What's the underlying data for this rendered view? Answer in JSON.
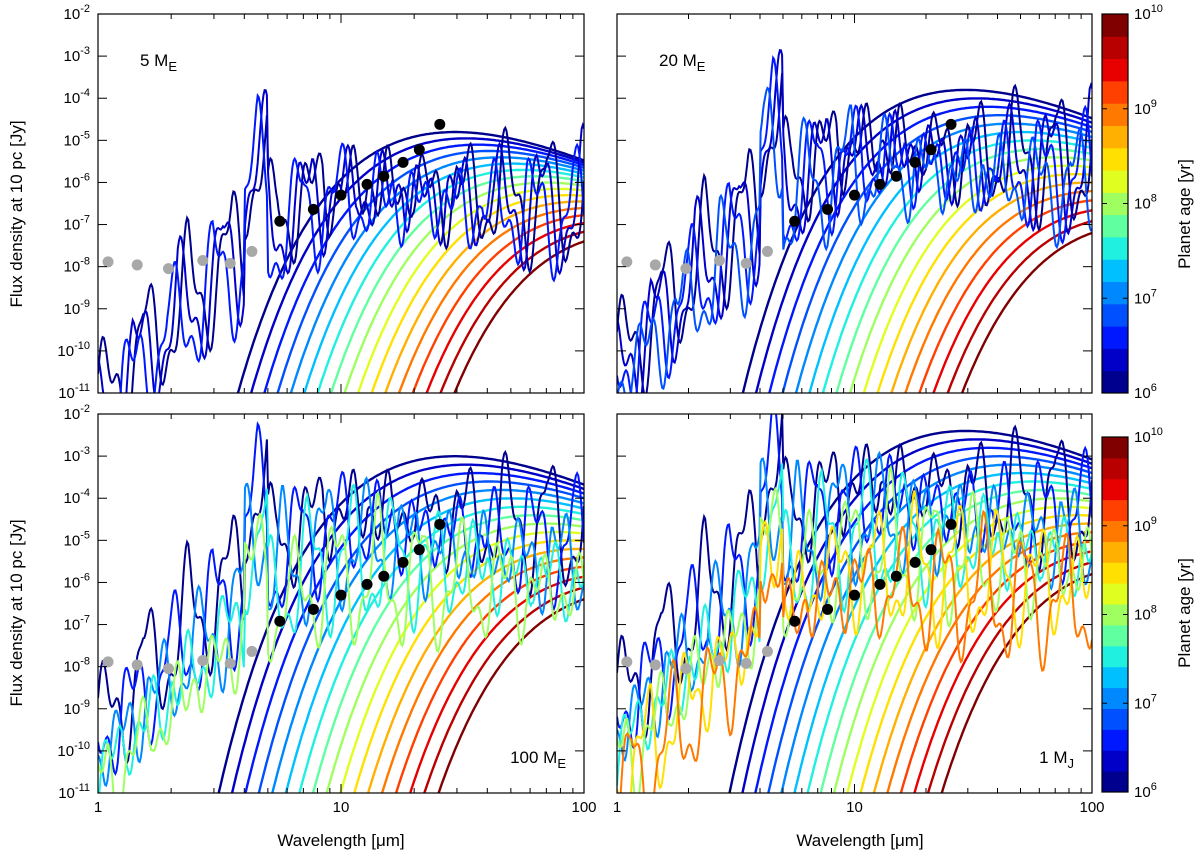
{
  "figure": {
    "y_axis_title": "Flux density at 10 pc [Jy]",
    "x_axis_title": "Wavelength [μm]",
    "colorbar_title": "Planet age [yr]"
  },
  "colorbar": {
    "ticks": [
      {
        "base": "10",
        "exp": "6"
      },
      {
        "base": "10",
        "exp": "7"
      },
      {
        "base": "10",
        "exp": "8"
      },
      {
        "base": "10",
        "exp": "9"
      },
      {
        "base": "10",
        "exp": "10"
      }
    ],
    "colors": [
      "#00008f",
      "#0000c8",
      "#0018ff",
      "#0050ff",
      "#0088ff",
      "#00c0ff",
      "#20f0e0",
      "#60ffa0",
      "#a0ff60",
      "#e0ff20",
      "#ffe000",
      "#ffb000",
      "#ff7800",
      "#ff4000",
      "#e80000",
      "#b80000",
      "#800000"
    ]
  },
  "x_ticks": [
    "1",
    "10",
    "100"
  ],
  "y_ticks": [
    {
      "base": "10",
      "exp": "-2"
    },
    {
      "base": "10",
      "exp": "-3"
    },
    {
      "base": "10",
      "exp": "-4"
    },
    {
      "base": "10",
      "exp": "-5"
    },
    {
      "base": "10",
      "exp": "-6"
    },
    {
      "base": "10",
      "exp": "-7"
    },
    {
      "base": "10",
      "exp": "-8"
    },
    {
      "base": "10",
      "exp": "-9"
    },
    {
      "base": "10",
      "exp": "-10"
    },
    {
      "base": "10",
      "exp": "-11"
    }
  ],
  "chart_data": [
    {
      "type": "line",
      "panel": "top-left",
      "title": "5 M_E",
      "label_main": "5 M",
      "label_sub": "E",
      "label_position": "top-left",
      "xlabel": "",
      "ylabel": "Flux density at 10 pc [Jy]",
      "xscale": "log",
      "yscale": "log",
      "xlim": [
        1,
        100
      ],
      "ylim": [
        1e-11,
        0.01
      ],
      "model_peak_log_flux_young": -5.0,
      "model_peak_log_flux_old": -7.4,
      "spectral_feature_max_color_index": 2,
      "observed_points_black": {
        "wavelength_um": [
          5.6,
          7.7,
          10,
          12.8,
          15,
          18,
          21,
          25.5
        ],
        "flux_jy": [
          1.2e-07,
          2.3e-07,
          5e-07,
          9e-07,
          1.4e-06,
          3e-06,
          6e-06,
          2.4e-05
        ]
      },
      "observed_points_gray": {
        "wavelength_um": [
          1.1,
          1.45,
          1.95,
          2.7,
          3.5,
          4.3
        ],
        "flux_jy": [
          1.3e-08,
          1.1e-08,
          9e-09,
          1.4e-08,
          1.2e-08,
          2.3e-08
        ]
      }
    },
    {
      "type": "line",
      "panel": "top-right",
      "title": "20 M_E",
      "label_main": "20 M",
      "label_sub": "E",
      "label_position": "top-left",
      "xlabel": "",
      "ylabel": "",
      "xscale": "log",
      "yscale": "log",
      "xlim": [
        1,
        100
      ],
      "ylim": [
        1e-11,
        0.01
      ],
      "model_peak_log_flux_young": -4.0,
      "model_peak_log_flux_old": -7.2,
      "spectral_feature_max_color_index": 3,
      "observed_points_black": {
        "wavelength_um": [
          5.6,
          7.7,
          10,
          12.8,
          15,
          18,
          21,
          25.5
        ],
        "flux_jy": [
          1.2e-07,
          2.3e-07,
          5e-07,
          9e-07,
          1.4e-06,
          3e-06,
          6e-06,
          2.4e-05
        ]
      },
      "observed_points_gray": {
        "wavelength_um": [
          1.1,
          1.45,
          1.95,
          2.7,
          3.5,
          4.3
        ],
        "flux_jy": [
          1.3e-08,
          1.1e-08,
          9e-09,
          1.4e-08,
          1.2e-08,
          2.3e-08
        ]
      }
    },
    {
      "type": "line",
      "panel": "bottom-left",
      "title": "100 M_E",
      "label_main": "100 M",
      "label_sub": "E",
      "label_position": "bottom-right",
      "xlabel": "Wavelength [μm]",
      "ylabel": "Flux density at 10 pc [Jy]",
      "xscale": "log",
      "yscale": "log",
      "xlim": [
        1,
        100
      ],
      "ylim": [
        1e-11,
        0.01
      ],
      "model_peak_log_flux_young": -3.2,
      "model_peak_log_flux_old": -6.4,
      "spectral_feature_max_color_index": 8,
      "observed_points_black": {
        "wavelength_um": [
          5.6,
          7.7,
          10,
          12.8,
          15,
          18,
          21,
          25.5
        ],
        "flux_jy": [
          1.2e-07,
          2.3e-07,
          5e-07,
          9e-07,
          1.4e-06,
          3e-06,
          6e-06,
          2.4e-05
        ]
      },
      "observed_points_gray": {
        "wavelength_um": [
          1.1,
          1.45,
          1.95,
          2.7,
          3.5,
          4.3
        ],
        "flux_jy": [
          1.3e-08,
          1.1e-08,
          9e-09,
          1.4e-08,
          1.2e-08,
          2.3e-08
        ]
      }
    },
    {
      "type": "line",
      "panel": "bottom-right",
      "title": "1 M_J",
      "label_main": "1 M",
      "label_sub": "J",
      "label_position": "bottom-right",
      "xlabel": "Wavelength [μm]",
      "ylabel": "",
      "xscale": "log",
      "yscale": "log",
      "xlim": [
        1,
        100
      ],
      "ylim": [
        1e-11,
        0.01
      ],
      "model_peak_log_flux_young": -2.6,
      "model_peak_log_flux_old": -5.8,
      "spectral_feature_max_color_index": 12,
      "observed_points_black": {
        "wavelength_um": [
          5.6,
          7.7,
          10,
          12.8,
          15,
          18,
          21,
          25.5
        ],
        "flux_jy": [
          1.2e-07,
          2.3e-07,
          5e-07,
          9e-07,
          1.4e-06,
          3e-06,
          6e-06,
          2.4e-05
        ]
      },
      "observed_points_gray": {
        "wavelength_um": [
          1.1,
          1.45,
          1.95,
          2.7,
          3.5,
          4.3
        ],
        "flux_jy": [
          1.3e-08,
          1.1e-08,
          9e-09,
          1.4e-08,
          1.2e-08,
          2.3e-08
        ]
      }
    }
  ]
}
